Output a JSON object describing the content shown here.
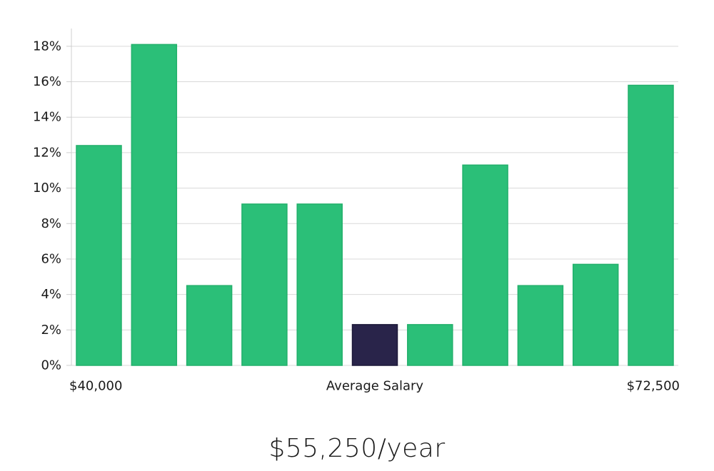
{
  "chart_data": {
    "type": "bar",
    "title": "",
    "xlabel": "Average Salary",
    "ylabel": "",
    "x_start_label": "$40,000",
    "x_end_label": "$72,500",
    "ylim": [
      0,
      19
    ],
    "yticks": [
      0,
      2,
      4,
      6,
      8,
      10,
      12,
      14,
      16,
      18
    ],
    "ytick_suffix": "%",
    "values": [
      12.4,
      18.1,
      4.5,
      9.1,
      9.1,
      2.3,
      2.3,
      11.3,
      4.5,
      5.7,
      15.8
    ],
    "highlight_index": 5,
    "grid": true
  },
  "colors": {
    "bar": "#2bbf78",
    "bar_edge": "#22b06b",
    "highlight": "#29244a",
    "grid": "#d9d9d9",
    "axis": "#cfcfcf"
  },
  "salary_summary": "$55,250/year"
}
